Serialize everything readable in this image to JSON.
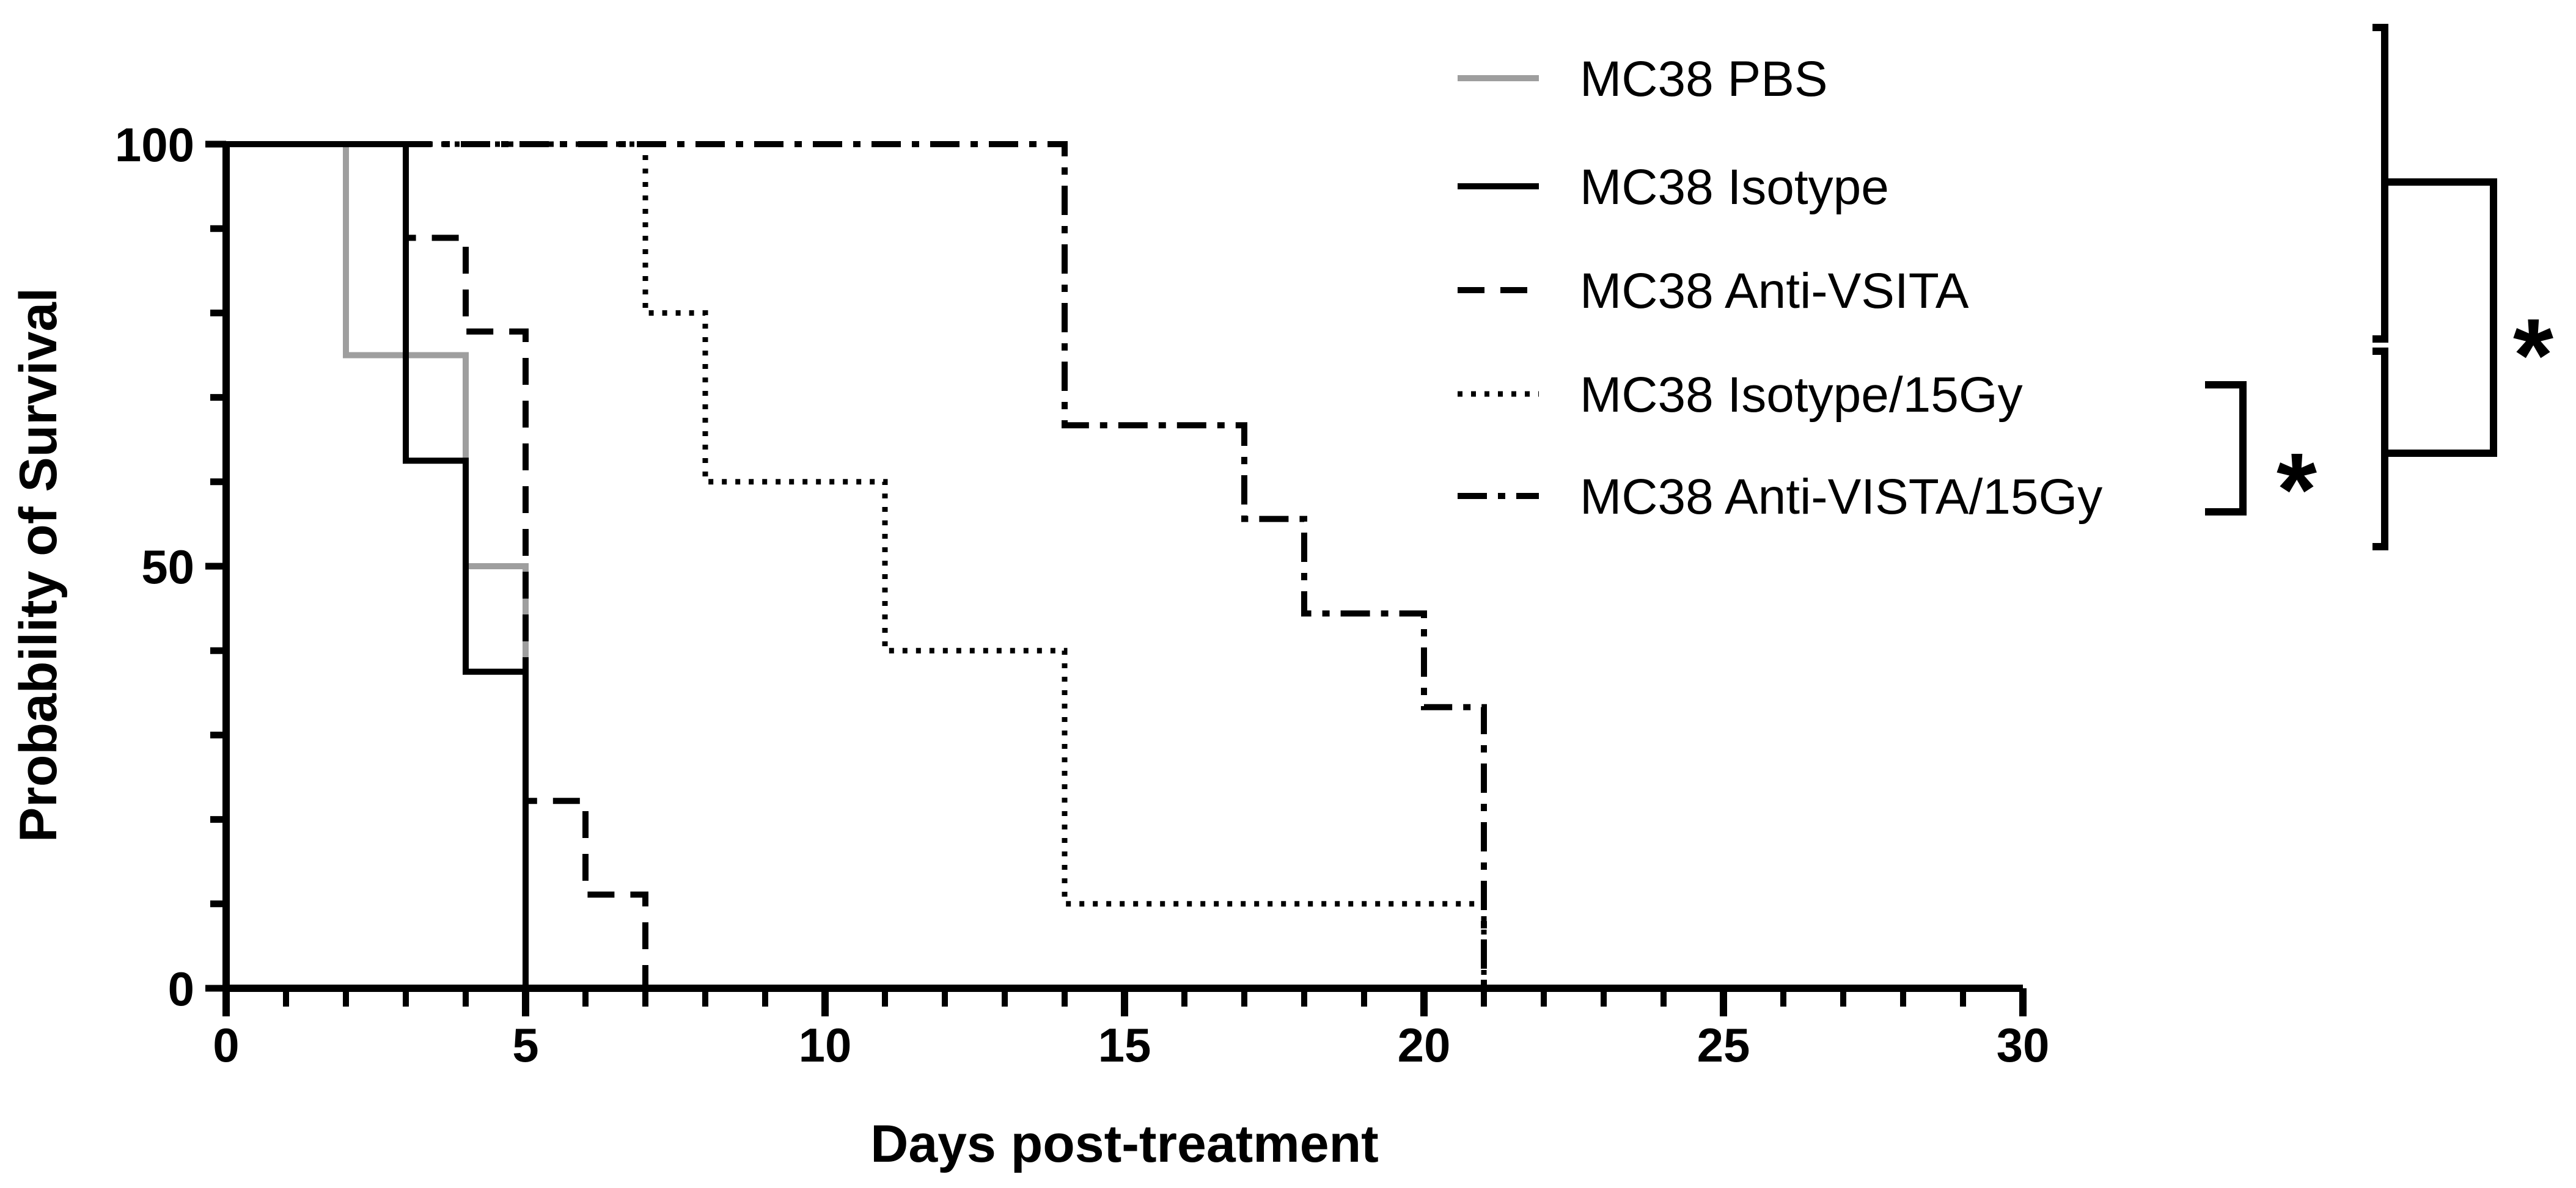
{
  "chart_data": {
    "type": "line",
    "subtype": "kaplan-meier step survival curves",
    "xlabel": "Days post-treatment",
    "ylabel": "Probability of Survival",
    "xlim": [
      0,
      30
    ],
    "ylim": [
      0,
      100
    ],
    "x_ticks": [
      "0",
      "5",
      "10",
      "15",
      "20",
      "25",
      "30"
    ],
    "y_ticks": [
      "0",
      "50",
      "100"
    ],
    "grid": false,
    "legend_position": "top-right",
    "series": [
      {
        "name": "MC38 PBS",
        "style": "solid",
        "color": "#9e9e9e",
        "points": [
          [
            0,
            100
          ],
          [
            2,
            100
          ],
          [
            2,
            75
          ],
          [
            4,
            75
          ],
          [
            4,
            50
          ],
          [
            5,
            50
          ],
          [
            5,
            0
          ]
        ]
      },
      {
        "name": "MC38 Isotype",
        "style": "solid",
        "color": "#000000",
        "points": [
          [
            0,
            100
          ],
          [
            3,
            100
          ],
          [
            3,
            62.5
          ],
          [
            4,
            62.5
          ],
          [
            4,
            37.5
          ],
          [
            5,
            37.5
          ],
          [
            5,
            0
          ]
        ]
      },
      {
        "name": "MC38 Anti-VSITA",
        "style": "dashed",
        "color": "#000000",
        "points": [
          [
            0,
            100
          ],
          [
            3,
            100
          ],
          [
            3,
            88.9
          ],
          [
            4,
            88.9
          ],
          [
            4,
            77.8
          ],
          [
            5,
            77.8
          ],
          [
            5,
            22.2
          ],
          [
            6,
            22.2
          ],
          [
            6,
            11.1
          ],
          [
            7,
            11.1
          ],
          [
            7,
            0
          ]
        ]
      },
      {
        "name": "MC38 Isotype/15Gy",
        "style": "dotted",
        "color": "#000000",
        "points": [
          [
            0,
            100
          ],
          [
            7,
            100
          ],
          [
            7,
            80
          ],
          [
            8,
            80
          ],
          [
            8,
            60
          ],
          [
            11,
            60
          ],
          [
            11,
            40
          ],
          [
            14,
            40
          ],
          [
            14,
            10
          ],
          [
            21,
            10
          ],
          [
            21,
            0
          ]
        ]
      },
      {
        "name": "MC38 Anti-VISTA/15Gy",
        "style": "dashdot",
        "color": "#000000",
        "points": [
          [
            0,
            100
          ],
          [
            14,
            100
          ],
          [
            14,
            66.7
          ],
          [
            17,
            66.7
          ],
          [
            17,
            55.6
          ],
          [
            18,
            55.6
          ],
          [
            18,
            44.4
          ],
          [
            20,
            44.4
          ],
          [
            20,
            33.3
          ],
          [
            21,
            33.3
          ],
          [
            21,
            0
          ]
        ]
      }
    ],
    "annotations": [
      {
        "text": "*",
        "meaning": "significance bracket between MC38 Isotype/15Gy and MC38 Anti-VISTA/15Gy"
      },
      {
        "text": "*",
        "meaning": "significance bracket between the non-irradiated group and the irradiated group"
      }
    ]
  }
}
